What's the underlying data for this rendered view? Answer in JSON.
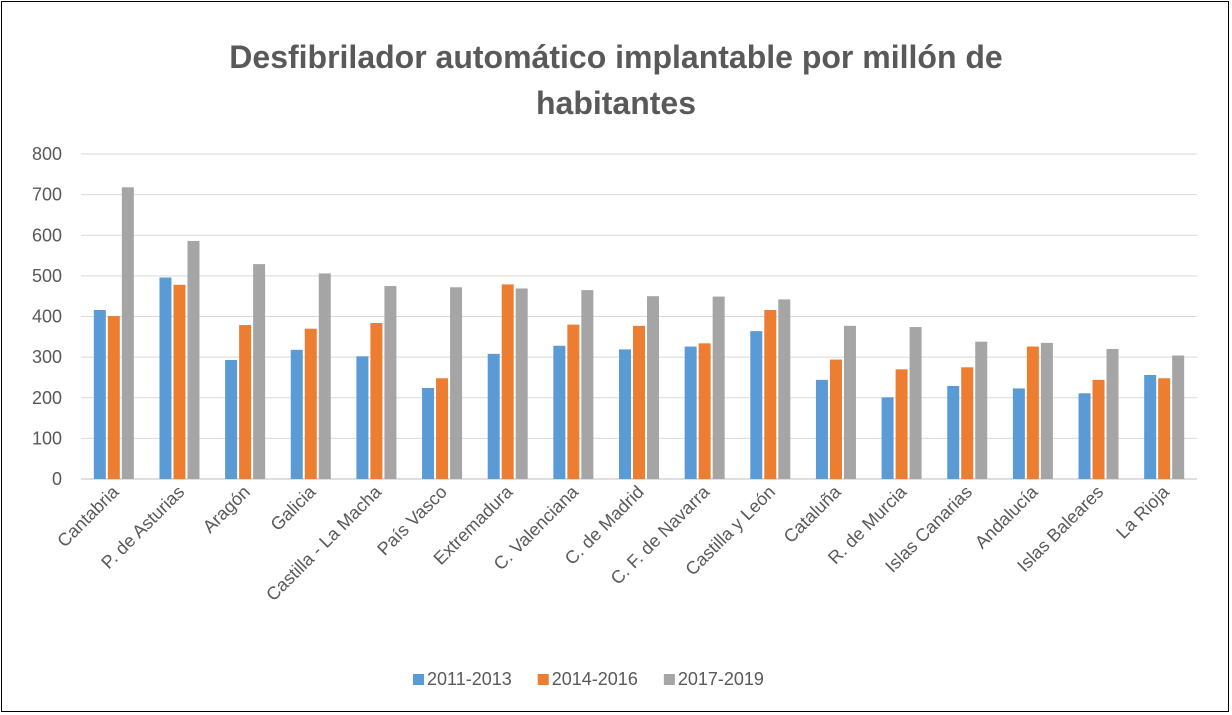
{
  "chart_data": {
    "type": "bar",
    "title": "Desfibrilador automático implantable por millón de habitantes",
    "xlabel": "",
    "ylabel": "",
    "ylim": [
      0,
      800
    ],
    "yticks": [
      0,
      100,
      200,
      300,
      400,
      500,
      600,
      700,
      800
    ],
    "grid": true,
    "legend_position": "bottom",
    "categories": [
      "Cantabria",
      "P. de Asturias",
      "Aragón",
      "Galicia",
      "Castilla - La Macha",
      "País Vasco",
      "Extremadura",
      "C. Valenciana",
      "C. de Madrid",
      "C. F. de Navarra",
      "Castilla y León",
      "Cataluña",
      "R. de Murcia",
      "Islas Canarias",
      "Andalucía",
      "Islas Baleares",
      "La Rioja"
    ],
    "series": [
      {
        "name": "2011-2013",
        "color": "#5B9BD5",
        "values": [
          416,
          496,
          293,
          318,
          302,
          224,
          308,
          328,
          319,
          326,
          364,
          244,
          201,
          229,
          223,
          211,
          256
        ]
      },
      {
        "name": "2014-2016",
        "color": "#ED7D31",
        "values": [
          401,
          478,
          379,
          370,
          384,
          248,
          479,
          380,
          377,
          334,
          416,
          294,
          270,
          275,
          326,
          244,
          248
        ]
      },
      {
        "name": "2017-2019",
        "color": "#A5A5A5",
        "values": [
          718,
          586,
          529,
          506,
          475,
          472,
          469,
          465,
          450,
          449,
          442,
          377,
          374,
          338,
          335,
          320,
          304
        ]
      }
    ]
  }
}
